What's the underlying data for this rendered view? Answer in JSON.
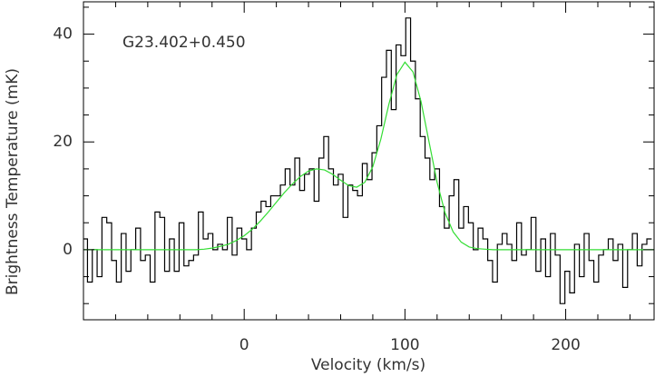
{
  "chart_data": {
    "type": "line",
    "annotation": "G23.402+0.450",
    "x_label": "Velocity (km/s)",
    "y_label": "Brightness Temperature (mK)",
    "xlim": [
      -100,
      255
    ],
    "ylim": [
      -13,
      46
    ],
    "xticks": [
      0,
      100,
      200
    ],
    "yticks": [
      0,
      20,
      40
    ],
    "xminorticks": [
      -80,
      -60,
      -40,
      -20,
      20,
      40,
      60,
      80,
      120,
      140,
      160,
      180,
      220,
      240
    ],
    "yminorticks": [
      -10,
      -5,
      5,
      10,
      15,
      25,
      30,
      35,
      45
    ],
    "series": [
      {
        "style": "step",
        "color": "#000000",
        "x": [
          -99,
          -96,
          -93,
          -90,
          -87,
          -84,
          -81,
          -78,
          -75,
          -72,
          -69,
          -66,
          -63,
          -60,
          -57,
          -54,
          -51,
          -48,
          -45,
          -42,
          -39,
          -36,
          -33,
          -30,
          -27,
          -24,
          -21,
          -18,
          -15,
          -12,
          -9,
          -6,
          -3,
          0,
          3,
          6,
          9,
          12,
          15,
          18,
          21,
          24,
          27,
          30,
          33,
          36,
          39,
          42,
          45,
          48,
          51,
          54,
          57,
          60,
          63,
          66,
          69,
          72,
          75,
          78,
          81,
          84,
          87,
          90,
          93,
          96,
          99,
          102,
          105,
          108,
          111,
          114,
          117,
          120,
          123,
          126,
          129,
          132,
          135,
          138,
          141,
          144,
          147,
          150,
          153,
          156,
          159,
          162,
          165,
          168,
          171,
          174,
          177,
          180,
          183,
          186,
          189,
          192,
          195,
          198,
          201,
          204,
          207,
          210,
          213,
          216,
          219,
          222,
          225,
          228,
          231,
          234,
          237,
          240,
          243,
          246,
          249,
          252
        ],
        "values": [
          2,
          -6,
          0,
          -5,
          6,
          5,
          -2,
          -6,
          3,
          -4,
          0,
          4,
          -2,
          -1,
          -6,
          7,
          6,
          -4,
          2,
          -4,
          5,
          -3,
          -2,
          -1,
          7,
          2,
          3,
          0,
          1,
          0,
          6,
          -1,
          4,
          2,
          0,
          4,
          7,
          9,
          8,
          10,
          10,
          12,
          15,
          12,
          17,
          11,
          14,
          15,
          9,
          17,
          21,
          15,
          12,
          14,
          6,
          12,
          11,
          10,
          16,
          13,
          18,
          23,
          32,
          37,
          26,
          38,
          36,
          43,
          35,
          28,
          21,
          17,
          13,
          15,
          8,
          4,
          10,
          13,
          4,
          8,
          5,
          0,
          4,
          2,
          -2,
          -6,
          1,
          3,
          1,
          -2,
          5,
          -1,
          0,
          6,
          -4,
          2,
          -5,
          3,
          -1,
          -10,
          -4,
          -8,
          1,
          -5,
          3,
          -2,
          -6,
          -1,
          0,
          2,
          -2,
          1,
          -7,
          0,
          3,
          -3,
          1,
          2
        ]
      },
      {
        "style": "smooth",
        "color": "#33dd33",
        "x": [
          -100,
          -95,
          -90,
          -85,
          -80,
          -75,
          -70,
          -65,
          -60,
          -55,
          -50,
          -45,
          -40,
          -35,
          -30,
          -25,
          -20,
          -15,
          -10,
          -5,
          0,
          5,
          10,
          15,
          20,
          25,
          30,
          35,
          40,
          45,
          50,
          55,
          60,
          65,
          70,
          75,
          80,
          85,
          90,
          95,
          100,
          105,
          110,
          115,
          120,
          125,
          130,
          135,
          140,
          145,
          150,
          155,
          160,
          165,
          170,
          175,
          180,
          185,
          190,
          195,
          200,
          205,
          210,
          215,
          220,
          225,
          230,
          235,
          240,
          245,
          250,
          255
        ],
        "values": [
          0,
          0,
          0,
          0,
          0,
          0,
          0,
          0,
          0,
          0,
          0,
          0,
          0,
          0,
          0,
          0.1,
          0.3,
          0.6,
          1,
          1.7,
          2.6,
          3.8,
          5.3,
          7,
          8.8,
          10.6,
          12.2,
          13.6,
          14.6,
          15,
          14.8,
          14,
          12.9,
          11.9,
          11.6,
          12.5,
          15.4,
          20.5,
          27,
          32.5,
          34.8,
          33,
          27.5,
          20,
          12.5,
          6.8,
          3.3,
          1.4,
          0.5,
          0.2,
          0.1,
          0,
          0,
          0,
          0,
          0,
          0,
          0,
          0,
          0,
          0,
          0,
          0,
          0,
          0,
          0,
          0,
          0,
          0,
          0,
          0,
          0
        ]
      }
    ]
  }
}
